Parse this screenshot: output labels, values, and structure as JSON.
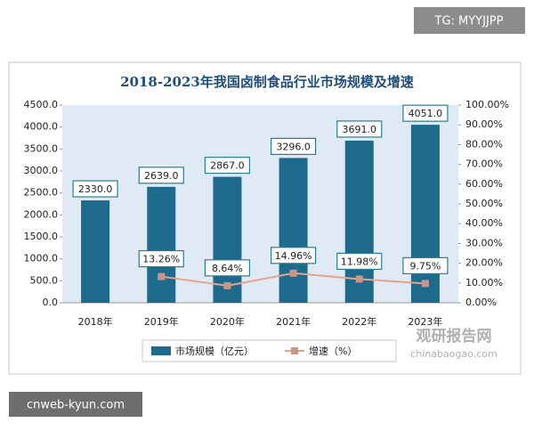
{
  "chart_data": {
    "type": "bar-line",
    "title": "2018-2023年我国卤制食品行业市场规模及增速",
    "categories": [
      "2018年",
      "2019年",
      "2020年",
      "2021年",
      "2022年",
      "2023年"
    ],
    "series": [
      {
        "name": "市场规模（亿元）",
        "type": "bar",
        "color": "#1d6a8d",
        "values": [
          2330.0,
          2639.0,
          2867.0,
          3296.0,
          3691.0,
          4051.0
        ],
        "value_labels": [
          "2330.0",
          "2639.0",
          "2867.0",
          "3296.0",
          "3691.0",
          "4051.0"
        ]
      },
      {
        "name": "增速（%）",
        "type": "line",
        "axis": "y2",
        "color": "#e9a389",
        "values": [
          null,
          13.26,
          8.64,
          14.96,
          11.98,
          9.75
        ],
        "value_labels": [
          null,
          "13.26%",
          "8.64%",
          "14.96%",
          "11.98%",
          "9.75%"
        ]
      }
    ],
    "ylim": [
      0,
      4500
    ],
    "yticks": [
      {
        "value": 0,
        "label": "0.0"
      },
      {
        "value": 500,
        "label": "500.0"
      },
      {
        "value": 1000,
        "label": "1000.0"
      },
      {
        "value": 1500,
        "label": "1500.0"
      },
      {
        "value": 2000,
        "label": "2000.0"
      },
      {
        "value": 2500,
        "label": "2500.0"
      },
      {
        "value": 3000,
        "label": "3000.0"
      },
      {
        "value": 3500,
        "label": "3500.0"
      },
      {
        "value": 4000,
        "label": "4000.0"
      },
      {
        "value": 4500,
        "label": "4500.0"
      }
    ],
    "y2lim": [
      0,
      100
    ],
    "y2ticks": [
      {
        "value": 0,
        "label": "0.00%"
      },
      {
        "value": 10,
        "label": "10.00%"
      },
      {
        "value": 20,
        "label": "20.00%"
      },
      {
        "value": 30,
        "label": "30.00%"
      },
      {
        "value": 40,
        "label": "40.00%"
      },
      {
        "value": 50,
        "label": "50.00%"
      },
      {
        "value": 60,
        "label": "60.00%"
      },
      {
        "value": 70,
        "label": "70.00%"
      },
      {
        "value": 80,
        "label": "80.00%"
      },
      {
        "value": 90,
        "label": "90.00%"
      },
      {
        "value": 100,
        "label": "100.00%"
      }
    ],
    "legend": "bottom"
  },
  "watermarks": {
    "top_right": "TG: MYYJJPP",
    "bottom_left": "cnweb-kyun.com",
    "brand": "观研报告网",
    "brand_url": "chinabaogao.com"
  }
}
